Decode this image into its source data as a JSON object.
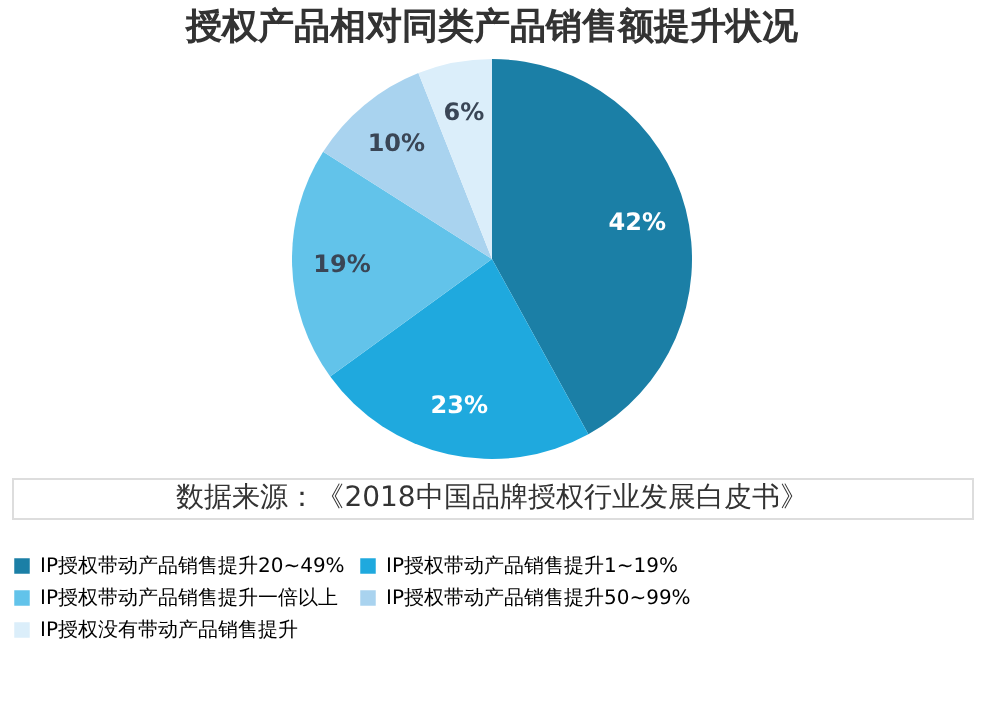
{
  "chart_data": {
    "type": "pie",
    "title": "授权产品相对同类产品销售额提升状况",
    "categories": [
      "IP授权带动产品销售提升20~49%",
      "IP授权带动产品销售提升1~19%",
      "IP授权带动产品销售提升一倍以上",
      "IP授权带动产品销售提升50~99%",
      "IP授权没有带动产品销售提升"
    ],
    "values": [
      42,
      23,
      19,
      10,
      6
    ],
    "colors": [
      "#1b7fa6",
      "#1fa9de",
      "#62c3ea",
      "#a9d3ef",
      "#dbeefa"
    ],
    "value_labels": [
      "42%",
      "23%",
      "19%",
      "10%",
      "6%"
    ],
    "legend": "bottom",
    "annotations": [
      "数据来源：《2018中国品牌授权行业发展白皮书》"
    ]
  }
}
